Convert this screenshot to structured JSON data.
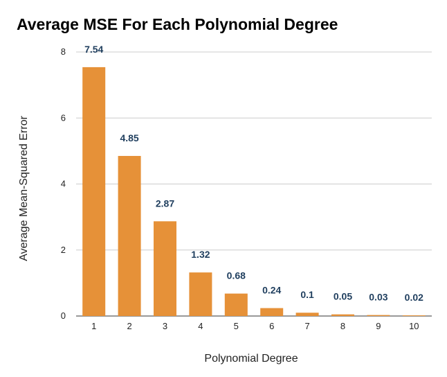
{
  "chart_data": {
    "type": "bar",
    "title": "Average MSE For Each Polynomial Degree",
    "xlabel": "Polynomial Degree",
    "ylabel": "Average Mean-Squared Error",
    "categories": [
      "1",
      "2",
      "3",
      "4",
      "5",
      "6",
      "7",
      "8",
      "9",
      "10"
    ],
    "values": [
      7.54,
      4.85,
      2.87,
      1.32,
      0.68,
      0.24,
      0.1,
      0.05,
      0.03,
      0.02
    ],
    "value_labels": [
      "7.54",
      "4.85",
      "2.87",
      "1.32",
      "0.68",
      "0.24",
      "0.1",
      "0.05",
      "0.03",
      "0.02"
    ],
    "ylim": [
      0,
      8
    ],
    "yticks": [
      0,
      2,
      4,
      6,
      8
    ],
    "ytick_labels": [
      "0",
      "2",
      "4",
      "6",
      "8"
    ],
    "grid": "horizontal",
    "bar_color": "#e69138",
    "label_color": "#1f3e5e",
    "legend": "none"
  }
}
